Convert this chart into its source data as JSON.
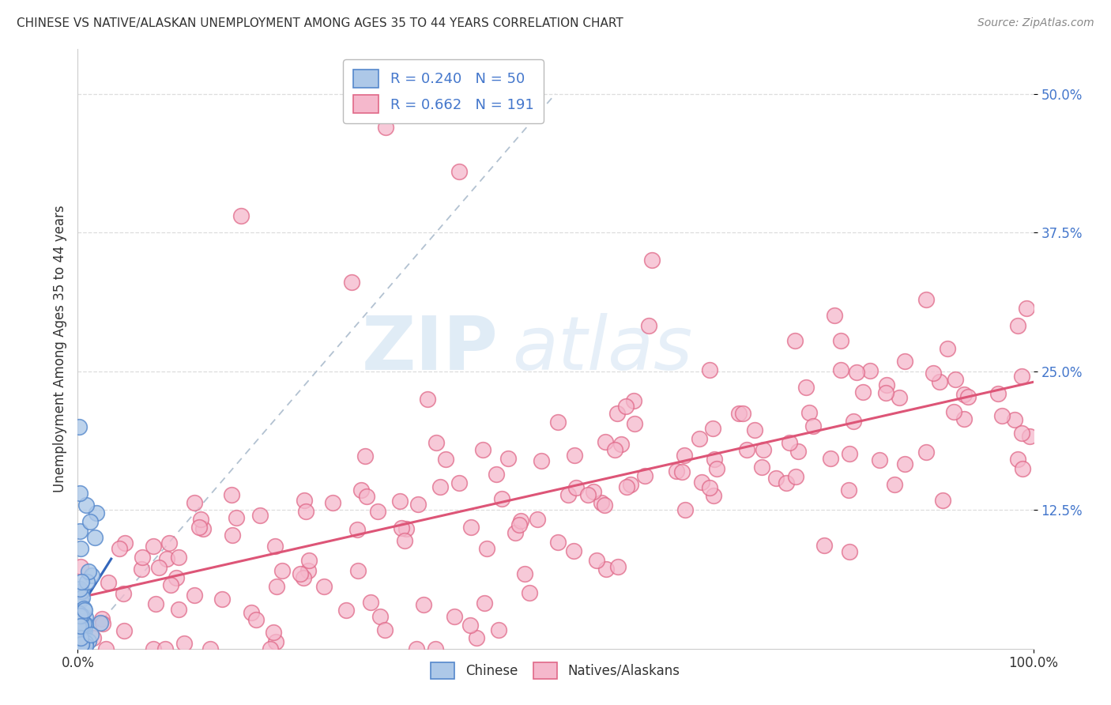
{
  "title": "CHINESE VS NATIVE/ALASKAN UNEMPLOYMENT AMONG AGES 35 TO 44 YEARS CORRELATION CHART",
  "source": "Source: ZipAtlas.com",
  "ylabel": "Unemployment Among Ages 35 to 44 years",
  "xlim": [
    0,
    1.0
  ],
  "ylim": [
    0,
    0.54
  ],
  "xtick_labels": [
    "0.0%",
    "100.0%"
  ],
  "xtick_positions": [
    0.0,
    1.0
  ],
  "ytick_labels": [
    "12.5%",
    "25.0%",
    "37.5%",
    "50.0%"
  ],
  "ytick_positions": [
    0.125,
    0.25,
    0.375,
    0.5
  ],
  "chinese_color": "#adc8e8",
  "native_color": "#f5b8cc",
  "chinese_edge_color": "#5588cc",
  "native_edge_color": "#e06888",
  "trendline_chinese_color": "#3366bb",
  "trendline_native_color": "#dd5577",
  "diagonal_color": "#aabbcc",
  "background_color": "#ffffff",
  "grid_color": "#dddddd",
  "legend_R_chinese": "0.240",
  "legend_N_chinese": "50",
  "legend_R_native": "0.662",
  "legend_N_native": "191",
  "watermark_zip": "ZIP",
  "watermark_atlas": "atlas",
  "title_fontsize": 11,
  "source_fontsize": 10,
  "tick_fontsize": 12,
  "legend_fontsize": 13
}
